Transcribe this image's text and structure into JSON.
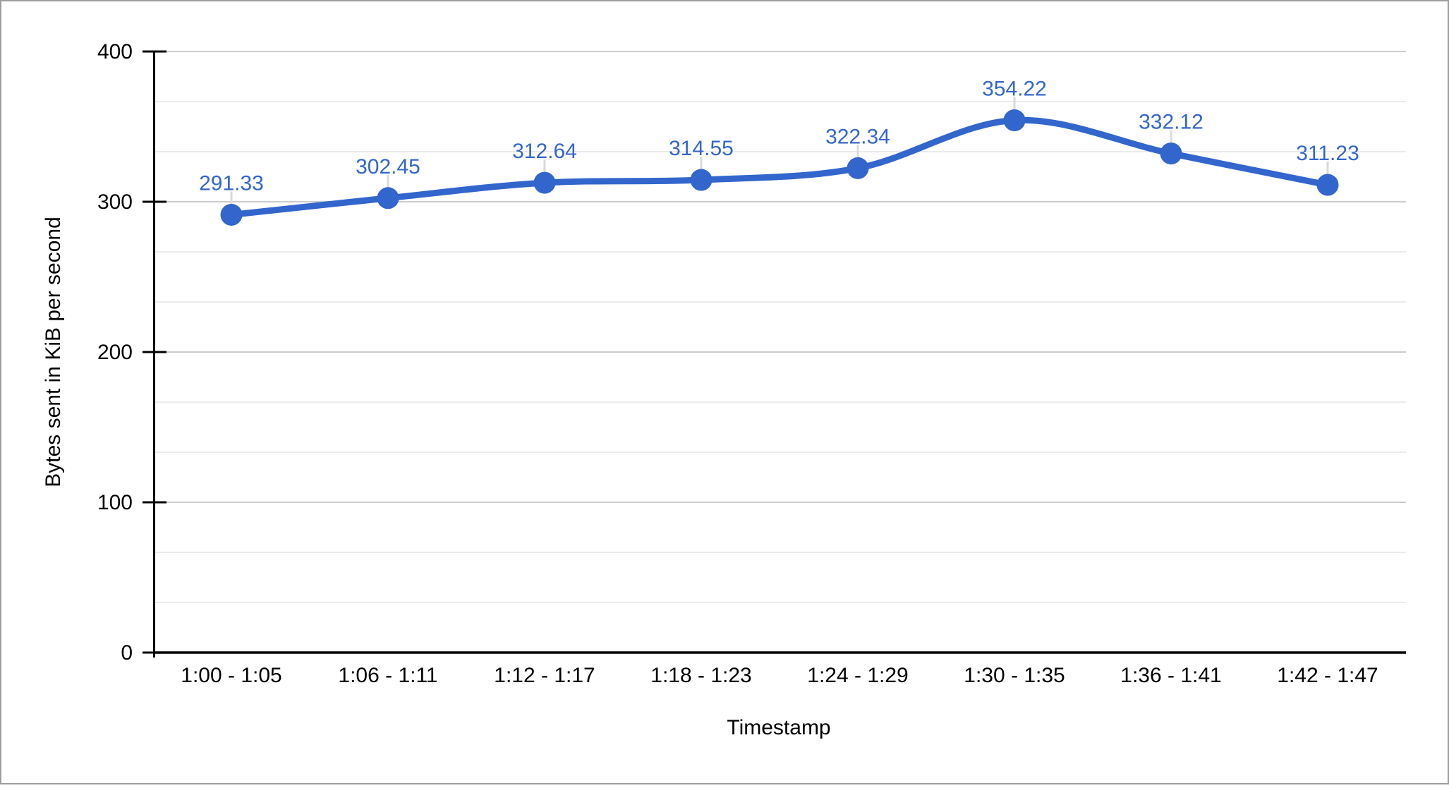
{
  "chart_data": {
    "type": "line",
    "title": "",
    "xlabel": "Timestamp",
    "ylabel": "Bytes sent in KiB per second",
    "categories": [
      "1:00 - 1:05",
      "1:06 - 1:11",
      "1:12 - 1:17",
      "1:18 - 1:23",
      "1:24 - 1:29",
      "1:30 - 1:35",
      "1:36 - 1:41",
      "1:42 - 1:47"
    ],
    "series": [
      {
        "name": "Bytes sent",
        "values": [
          291.33,
          302.45,
          312.64,
          314.55,
          322.34,
          354.22,
          332.12,
          311.23
        ],
        "annotations": [
          "291.33",
          "302.45",
          "312.64",
          "314.55",
          "322.34",
          "354.22",
          "332.12",
          "311.23"
        ]
      }
    ],
    "ylim": [
      0,
      400
    ],
    "yticks": [
      0,
      100,
      200,
      300,
      400
    ],
    "minor_gridlines_between_major": 2,
    "grid": true,
    "legend": "none",
    "curve": "smooth",
    "colors": {
      "series": "#3366cc",
      "annotation_text": "#3366cc",
      "annotation_stem": "#dadada",
      "gridline_major": "#cccccc",
      "gridline_minor": "#ebebeb",
      "axis": "#000000",
      "tick_label": "#000000",
      "axis_title": "#000000",
      "frame_border": "#9e9e9e",
      "background": "#ffffff"
    }
  }
}
